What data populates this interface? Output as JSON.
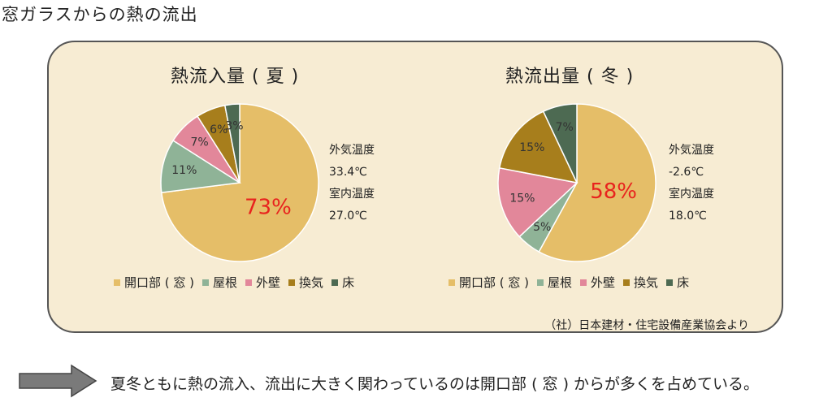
{
  "page_title": "窓ガラスからの熱の流出",
  "colors": {
    "opening": "#e5be68",
    "roof": "#8fb397",
    "wall": "#e2879a",
    "ventilation": "#a77e1c",
    "floor": "#4d6a52",
    "highlight": "#e8231e",
    "panel_bg": "#f7ecd3"
  },
  "conditions": {
    "summer": [
      "外気温度",
      "33.4℃",
      "室内温度",
      "27.0℃"
    ],
    "winter": [
      "外気温度",
      "-2.6℃",
      "室内温度",
      "18.0℃"
    ]
  },
  "chart_data": [
    {
      "type": "pie",
      "title": "熱流入量 ( 夏 )",
      "categories": [
        "開口部 ( 窓 )",
        "屋根",
        "外壁",
        "換気",
        "床"
      ],
      "values": [
        73,
        11,
        7,
        6,
        3
      ],
      "labels": [
        "73%",
        "11%",
        "7%",
        "6%",
        "3%"
      ],
      "legend_placement": "bottom"
    },
    {
      "type": "pie",
      "title": "熱流出量 ( 冬 )",
      "categories": [
        "開口部 ( 窓 )",
        "屋根",
        "外壁",
        "換気",
        "床"
      ],
      "values": [
        58,
        5,
        15,
        15,
        7
      ],
      "labels": [
        "58%",
        "5%",
        "15%",
        "15%",
        "7%"
      ],
      "legend_placement": "bottom"
    }
  ],
  "source": "（社）日本建材・住宅設備産業協会より",
  "conclusion": "夏冬ともに熱の流入、流出に大きく関わっているのは開口部 ( 窓 ) からが多くを占めている。"
}
